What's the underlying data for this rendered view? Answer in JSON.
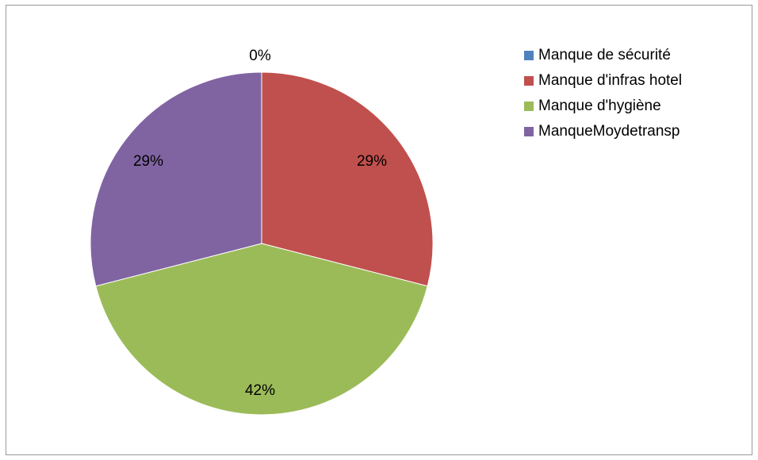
{
  "chart_data": {
    "type": "pie",
    "categories": [
      "Manque de sécurité",
      "Manque d'infras hotel",
      "Manque d'hygiène",
      "Manque Moy de transp"
    ],
    "values": [
      0,
      29,
      42,
      29
    ],
    "data_labels": [
      "0%",
      "29%",
      "42%",
      "29%"
    ],
    "colors": [
      "#4f81bd",
      "#c0504d",
      "#9bbb59",
      "#8064a2"
    ],
    "start_angle": "12 o'clock, clockwise",
    "legend": "right",
    "legend_labels": [
      "Manque de sécurité",
      "Manque d'infras hotel",
      "Manque d'hygiène",
      "ManqueMoydetransp"
    ]
  }
}
